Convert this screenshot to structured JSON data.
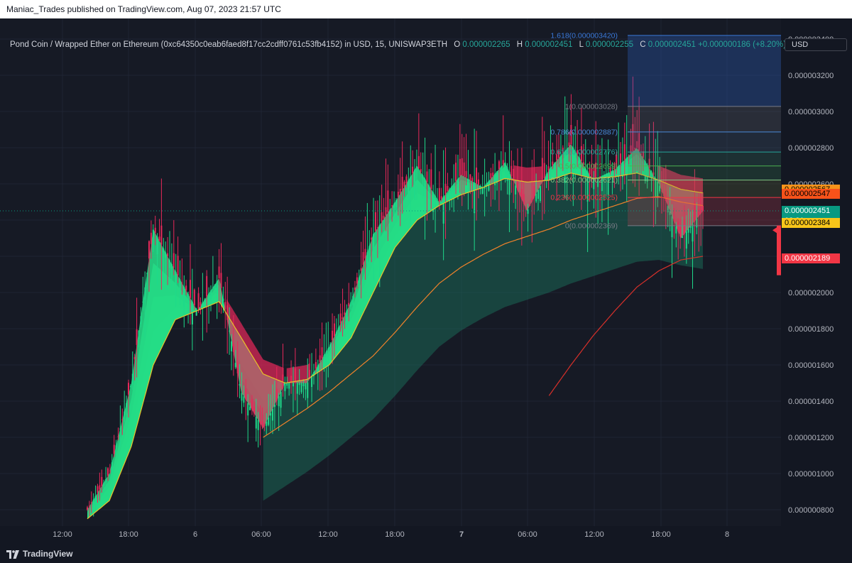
{
  "header": {
    "published_text": "Maniac_Trades published on TradingView.com, Aug 07, 2023 21:57 UTC"
  },
  "legend": {
    "symbol_text": "Pond Coin / Wrapped Ether on Ethereum (0xc64350c0eab6faed8f17cc2cdff0761c53fb4152) in USD, 15, UNISWAP3ETH",
    "o_label": "O",
    "o_value": "0.000002265",
    "h_label": "H",
    "h_value": "0.000002451",
    "l_label": "L",
    "l_value": "0.000002255",
    "c_label": "C",
    "c_value": "0.000002451",
    "change": "+0.000000186 (+8.20%)"
  },
  "currency_button": "USD",
  "footer": {
    "brand": "TradingView"
  },
  "colors": {
    "background": "#161a25",
    "bull": "#26e38a",
    "bear": "#e8285a",
    "ma_yellow": "#e8c12a",
    "ma_orange": "#f0822a",
    "ma_red": "#d8302a",
    "fib_blue": "#2a5fb8"
  },
  "chart_data": {
    "type": "line",
    "x_tick_labels": [
      "12:00",
      "18:00",
      "6",
      "06:00",
      "12:00",
      "18:00",
      "7",
      "06:00",
      "12:00",
      "18:00",
      "8"
    ],
    "y_tick_labels": [
      "0.000003400",
      "0.000003200",
      "0.000003000",
      "0.000002800",
      "0.000002600",
      "0.000002400",
      "0.000002200",
      "0.000002000",
      "0.000001800",
      "0.000001600",
      "0.000001400",
      "0.000001200",
      "0.000001000",
      "0.000000800"
    ],
    "ylim": [
      7.6e-07,
      3.53e-06
    ],
    "x": [
      "5 Aug 14:00",
      "5 Aug 16:00",
      "5 Aug 18:00",
      "5 Aug 20:00",
      "5 Aug 22:00",
      "6 Aug 00:00",
      "6 Aug 02:00",
      "6 Aug 04:00",
      "6 Aug 06:00",
      "6 Aug 08:00",
      "6 Aug 10:00",
      "6 Aug 12:00",
      "6 Aug 14:00",
      "6 Aug 16:00",
      "6 Aug 18:00",
      "6 Aug 20:00",
      "6 Aug 22:00",
      "7 Aug 00:00",
      "7 Aug 02:00",
      "7 Aug 04:00",
      "7 Aug 06:00",
      "7 Aug 08:00",
      "7 Aug 10:00",
      "7 Aug 12:00",
      "7 Aug 14:00",
      "7 Aug 16:00",
      "7 Aug 18:00",
      "7 Aug 20:00",
      "7 Aug 21:45"
    ],
    "series": [
      {
        "values": [
          8e-07,
          1e-06,
          1.5e-06,
          2.35e-06,
          2.12e-06,
          1.9e-06,
          2.08e-06,
          1.45e-06,
          1.25e-06,
          1.5e-06,
          1.5e-06,
          1.7e-06,
          1.95e-06,
          2.32e-06,
          2.5e-06,
          2.7e-06,
          2.5e-06,
          2.65e-06,
          2.58e-06,
          2.72e-06,
          2.45e-06,
          2.68e-06,
          2.82e-06,
          2.62e-06,
          2.68e-06,
          2.8e-06,
          2.6e-06,
          2.3e-06,
          2.45e-06
        ]
      },
      {
        "values": [
          7.5e-07,
          8.5e-07,
          1.15e-06,
          1.6e-06,
          1.85e-06,
          1.9e-06,
          1.95e-06,
          1.75e-06,
          1.55e-06,
          1.5e-06,
          1.52e-06,
          1.6e-06,
          1.75e-06,
          2e-06,
          2.25e-06,
          2.4e-06,
          2.48e-06,
          2.54e-06,
          2.58e-06,
          2.63e-06,
          2.61e-06,
          2.62e-06,
          2.66e-06,
          2.63e-06,
          2.64e-06,
          2.66e-06,
          2.62e-06,
          2.57e-06,
          2.55e-06
        ]
      },
      {
        "values": [
          null,
          null,
          null,
          null,
          null,
          null,
          null,
          null,
          1.2e-06,
          1.28e-06,
          1.36e-06,
          1.45e-06,
          1.55e-06,
          1.65e-06,
          1.78e-06,
          1.92e-06,
          2.05e-06,
          2.14e-06,
          2.21e-06,
          2.27e-06,
          2.31e-06,
          2.35e-06,
          2.4e-06,
          2.44e-06,
          2.48e-06,
          2.52e-06,
          2.53e-06,
          2.5e-06,
          2.48e-06
        ]
      },
      {
        "values": [
          null,
          null,
          null,
          null,
          null,
          null,
          null,
          null,
          null,
          null,
          null,
          null,
          null,
          null,
          null,
          null,
          null,
          null,
          null,
          null,
          null,
          1.43e-06,
          1.6e-06,
          1.76e-06,
          1.9e-06,
          2.03e-06,
          2.12e-06,
          2.18e-06,
          2.2e-06
        ]
      }
    ],
    "fibonacci": {
      "levels": [
        {
          "label": "1.618(0.000003420)",
          "ratio": 1.618,
          "price": 3.42e-06
        },
        {
          "label": "1(0.000003028)",
          "ratio": 1,
          "price": 3.028e-06
        },
        {
          "label": "0.786(0.000002887)",
          "ratio": 0.786,
          "price": 2.887e-06
        },
        {
          "label": "0.618(0.000002776)",
          "ratio": 0.618,
          "price": 2.776e-06
        },
        {
          "label": "0.5(0.000002699)",
          "ratio": 0.5,
          "price": 2.699e-06
        },
        {
          "label": "0.382(0.000002621)",
          "ratio": 0.382,
          "price": 2.621e-06
        },
        {
          "label": "0.236(0.000002525)",
          "ratio": 0.236,
          "price": 2.525e-06
        },
        {
          "label": "0(0.000002369)",
          "ratio": 0,
          "price": 2.369e-06
        }
      ]
    },
    "price_tags": [
      {
        "text": "0.000002567",
        "bg": "#f7931a",
        "price": 2.567e-06
      },
      {
        "text": "0.000002547",
        "bg": "#f7521a",
        "price": 2.547e-06
      },
      {
        "text": "0.000002451",
        "sub": "02:31",
        "bg": "#089981",
        "price": 2.451e-06
      },
      {
        "text": "0.000002384",
        "bg": "#f7c51a",
        "price": 2.384e-06
      },
      {
        "text": "0.000002189",
        "bg": "#f23645",
        "price": 2.189e-06
      }
    ]
  }
}
